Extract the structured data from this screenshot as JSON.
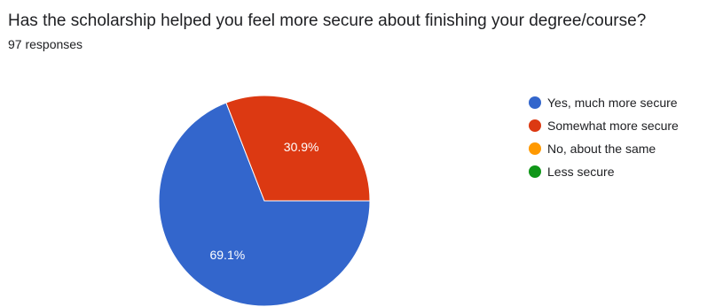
{
  "question": {
    "title": "Has the scholarship helped you feel more secure about finishing your degree/course?",
    "responses": "97 responses"
  },
  "chart_data": {
    "type": "pie",
    "categories": [
      "Yes, much more secure",
      "Somewhat more secure",
      "No, about the same",
      "Less secure"
    ],
    "values": [
      69.1,
      30.9,
      0,
      0
    ],
    "data_labels": [
      "69.1%",
      "30.9%",
      "",
      ""
    ],
    "colors": [
      "#3366cc",
      "#dc3912",
      "#ff9900",
      "#109618"
    ],
    "legend_position": "right"
  }
}
